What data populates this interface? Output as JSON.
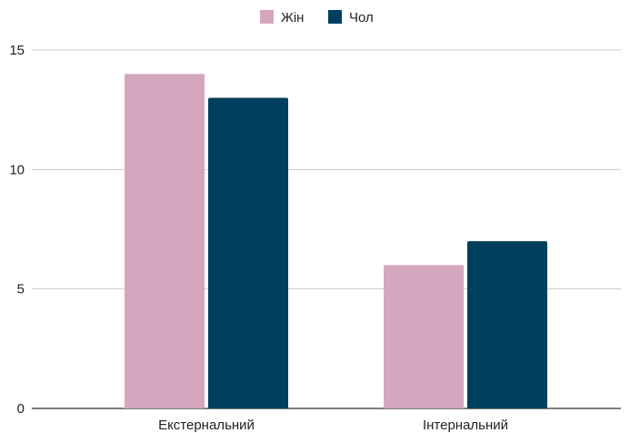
{
  "chart_data": {
    "type": "bar",
    "categories": [
      "Екстернальний",
      "Інтернальний"
    ],
    "series": [
      {
        "name": "Жін",
        "values": [
          14,
          6
        ],
        "color": "#d5a6bd"
      },
      {
        "name": "Чол",
        "values": [
          13,
          7
        ],
        "color": "#00405f"
      }
    ],
    "y_ticks": [
      "0",
      "5",
      "10",
      "15"
    ],
    "ylim": [
      0,
      15
    ],
    "grid": true,
    "legend_position": "top-center"
  }
}
